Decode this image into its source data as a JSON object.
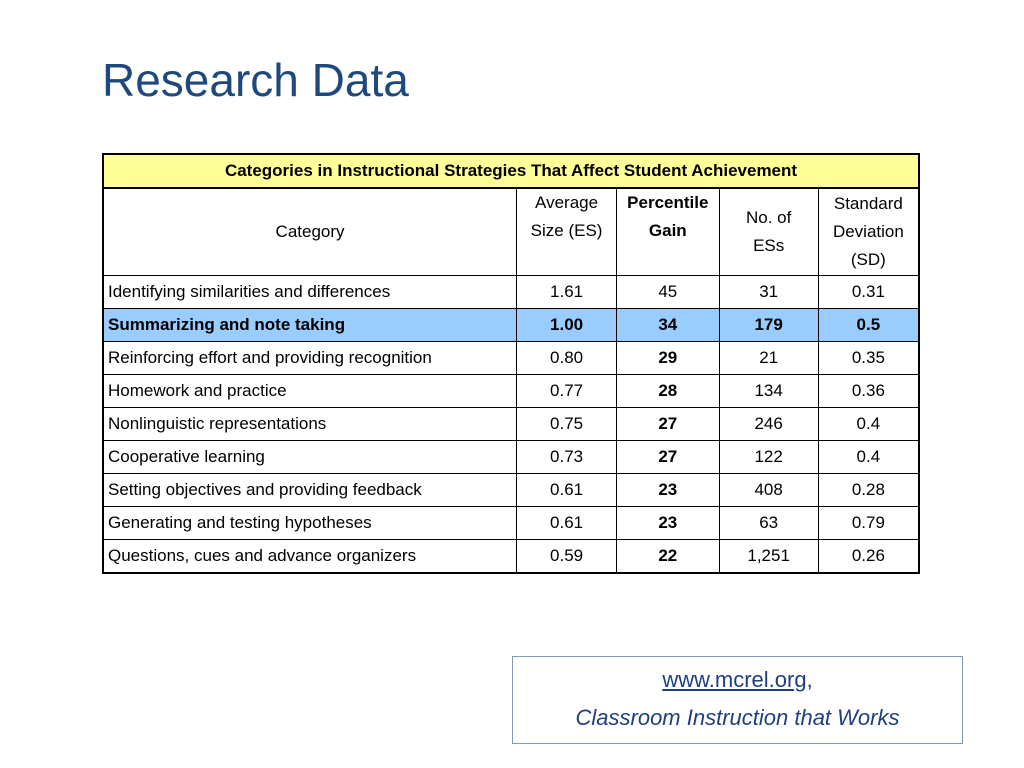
{
  "slide": {
    "title": "Research Data"
  },
  "table": {
    "caption": "Categories in Instructional Strategies That Affect Student Achievement",
    "headers": {
      "category": "Category",
      "es_line1": "Average",
      "es_line2": "Size (ES)",
      "gain_line1": "Percentile",
      "gain_line2": "Gain",
      "n_line1": "No. of",
      "n_line2": "ESs",
      "sd_line1": "Standard",
      "sd_line2": "Deviation",
      "sd_line3": "(SD)"
    },
    "rows": [
      {
        "category": "Identifying similarities and differences",
        "es": "1.61",
        "gain": "45",
        "n": "31",
        "sd": "0.31"
      },
      {
        "category": "Summarizing and note taking",
        "es": "1.00",
        "gain": "34",
        "n": "179",
        "sd": "0.5"
      },
      {
        "category": "Reinforcing effort and providing recognition",
        "es": "0.80",
        "gain": "29",
        "n": "21",
        "sd": "0.35"
      },
      {
        "category": "Homework and practice",
        "es": "0.77",
        "gain": "28",
        "n": "134",
        "sd": "0.36"
      },
      {
        "category": "Nonlinguistic representations",
        "es": "0.75",
        "gain": "27",
        "n": "246",
        "sd": "0.4"
      },
      {
        "category": "Cooperative learning",
        "es": "0.73",
        "gain": "27",
        "n": "122",
        "sd": "0.4"
      },
      {
        "category": "Setting objectives and providing feedback",
        "es": "0.61",
        "gain": "23",
        "n": "408",
        "sd": "0.28"
      },
      {
        "category": "Generating and testing hypotheses",
        "es": "0.61",
        "gain": "23",
        "n": "63",
        "sd": "0.79"
      },
      {
        "category": "Questions, cues and advance organizers",
        "es": "0.59",
        "gain": "22",
        "n": "1,251",
        "sd": "0.26"
      }
    ]
  },
  "source": {
    "link": "www.mcrel.org",
    "link_suffix": ",",
    "book": "Classroom Instruction that Works"
  },
  "colors": {
    "title": "#1f497d",
    "caption_bg": "#ffff99",
    "highlight_bg": "#99ccff",
    "source_text": "#1f3f7f"
  }
}
